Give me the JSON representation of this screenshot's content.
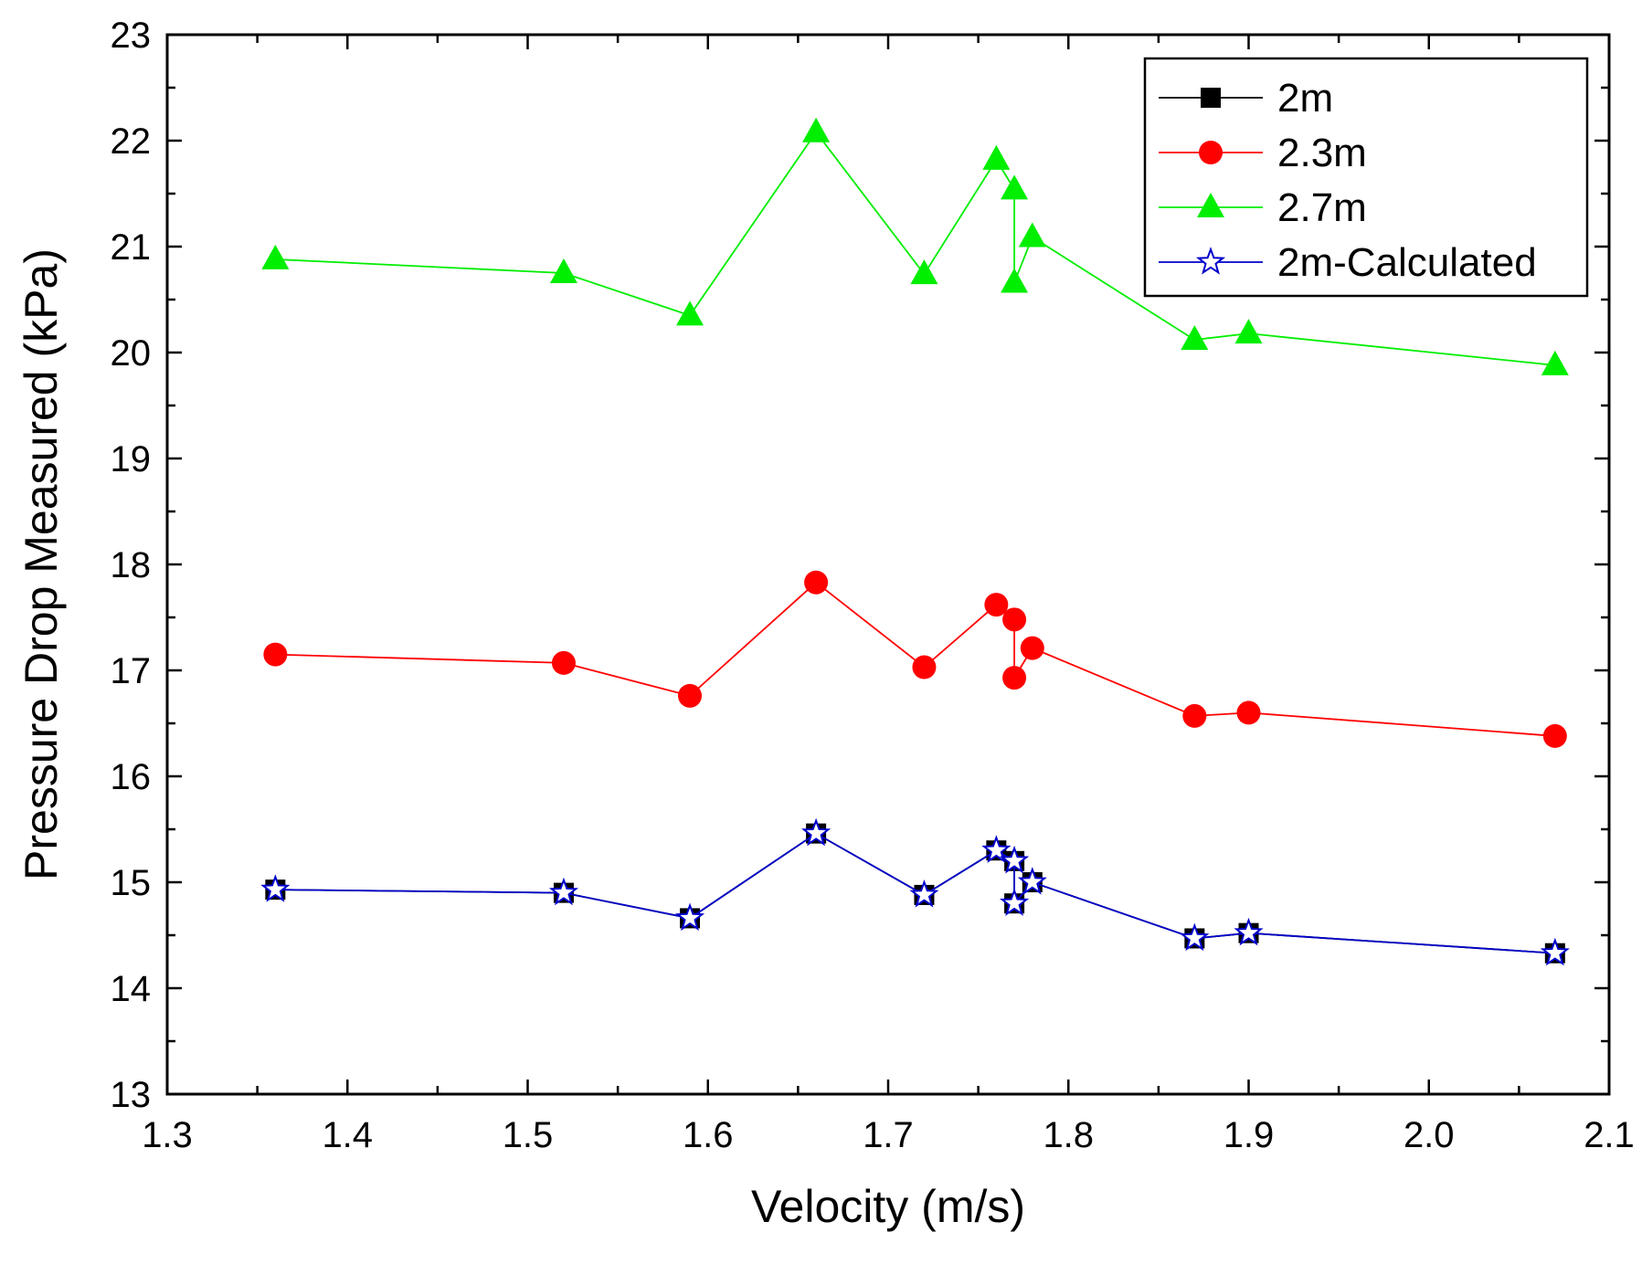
{
  "chart_data": {
    "type": "line",
    "xlabel": "Velocity  (m/s)",
    "ylabel": "Pressure Drop Measured (kPa)",
    "xlim": [
      1.3,
      2.1
    ],
    "ylim": [
      13,
      23
    ],
    "xticks": [
      "1.3",
      "1.4",
      "1.5",
      "1.6",
      "1.7",
      "1.8",
      "1.9",
      "2.0",
      "2.1"
    ],
    "yticks": [
      "13",
      "14",
      "15",
      "16",
      "17",
      "18",
      "19",
      "20",
      "21",
      "22",
      "23"
    ],
    "grid": false,
    "legend_position": "top-right",
    "series": [
      {
        "name": "2m",
        "color": "#000000",
        "marker": "square",
        "points": [
          [
            1.36,
            14.93
          ],
          [
            1.52,
            14.9
          ],
          [
            1.59,
            14.66
          ],
          [
            1.66,
            15.46
          ],
          [
            1.72,
            14.88
          ],
          [
            1.76,
            15.3
          ],
          [
            1.77,
            15.2
          ],
          [
            1.77,
            14.8
          ],
          [
            1.78,
            15.0
          ],
          [
            1.87,
            14.47
          ],
          [
            1.9,
            14.52
          ],
          [
            2.07,
            14.33
          ]
        ]
      },
      {
        "name": "2.3m",
        "color": "#ff0000",
        "marker": "circle",
        "points": [
          [
            1.36,
            17.15
          ],
          [
            1.52,
            17.07
          ],
          [
            1.59,
            16.76
          ],
          [
            1.66,
            17.83
          ],
          [
            1.72,
            17.03
          ],
          [
            1.76,
            17.62
          ],
          [
            1.77,
            17.48
          ],
          [
            1.77,
            16.93
          ],
          [
            1.78,
            17.21
          ],
          [
            1.87,
            16.57
          ],
          [
            1.9,
            16.6
          ],
          [
            2.07,
            16.38
          ]
        ]
      },
      {
        "name": "2.7m",
        "color": "#00ee00",
        "marker": "triangle",
        "points": [
          [
            1.36,
            20.88
          ],
          [
            1.52,
            20.75
          ],
          [
            1.59,
            20.35
          ],
          [
            1.66,
            22.08
          ],
          [
            1.72,
            20.74
          ],
          [
            1.76,
            21.82
          ],
          [
            1.77,
            21.54
          ],
          [
            1.77,
            20.66
          ],
          [
            1.78,
            21.09
          ],
          [
            1.87,
            20.12
          ],
          [
            1.9,
            20.18
          ],
          [
            2.07,
            19.88
          ]
        ]
      },
      {
        "name": "2m-Calculated",
        "color": "#0000cc",
        "marker": "star",
        "points": [
          [
            1.36,
            14.93
          ],
          [
            1.52,
            14.9
          ],
          [
            1.59,
            14.66
          ],
          [
            1.66,
            15.46
          ],
          [
            1.72,
            14.88
          ],
          [
            1.76,
            15.3
          ],
          [
            1.77,
            15.2
          ],
          [
            1.77,
            14.8
          ],
          [
            1.78,
            15.0
          ],
          [
            1.87,
            14.47
          ],
          [
            1.9,
            14.52
          ],
          [
            2.07,
            14.33
          ]
        ]
      }
    ]
  }
}
